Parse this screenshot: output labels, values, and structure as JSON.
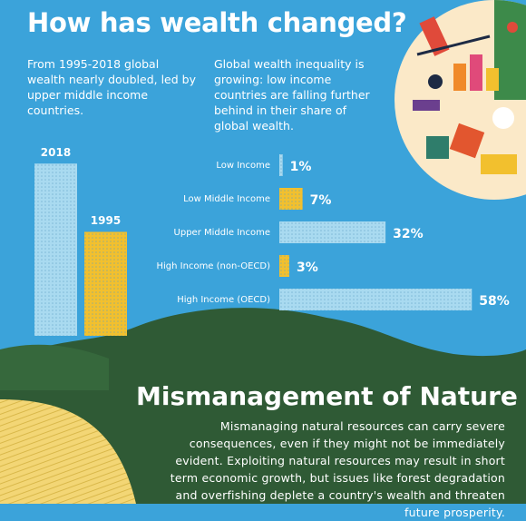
{
  "title": "How has wealth changed?",
  "intro_left": "From 1995-2018 global wealth nearly doubled, led by upper middle income countries.",
  "intro_right": "Global wealth inequality is growing: low income countries are falling further behind in their share of global wealth.",
  "chart_data": [
    {
      "type": "bar",
      "categories": [
        "2018",
        "1995"
      ],
      "values": [
        1143,
        690
      ],
      "colors": [
        "#a9daf0",
        "#f2c02e"
      ]
    },
    {
      "type": "hbar",
      "categories": [
        "Low Income",
        "Low Middle Income",
        "Upper Middle Income",
        "High Income (non-OECD)",
        "High Income (OECD)"
      ],
      "values": [
        1,
        7,
        32,
        3,
        58
      ],
      "value_labels": [
        "1%",
        "7%",
        "32%",
        "3%",
        "58%"
      ],
      "colors": [
        "#a9daf0",
        "#f2c02e",
        "#a9daf0",
        "#f2c02e",
        "#a9daf0"
      ]
    }
  ],
  "section": {
    "title": "Mismanagement of Nature",
    "body": "Mismanaging natural resources can carry severe consequences, even if they might not be immediately evident. Exploiting natural resources may result in short term economic growth, but issues like forest degradation and overfishing deplete a country's wealth and threaten future prosperity."
  }
}
